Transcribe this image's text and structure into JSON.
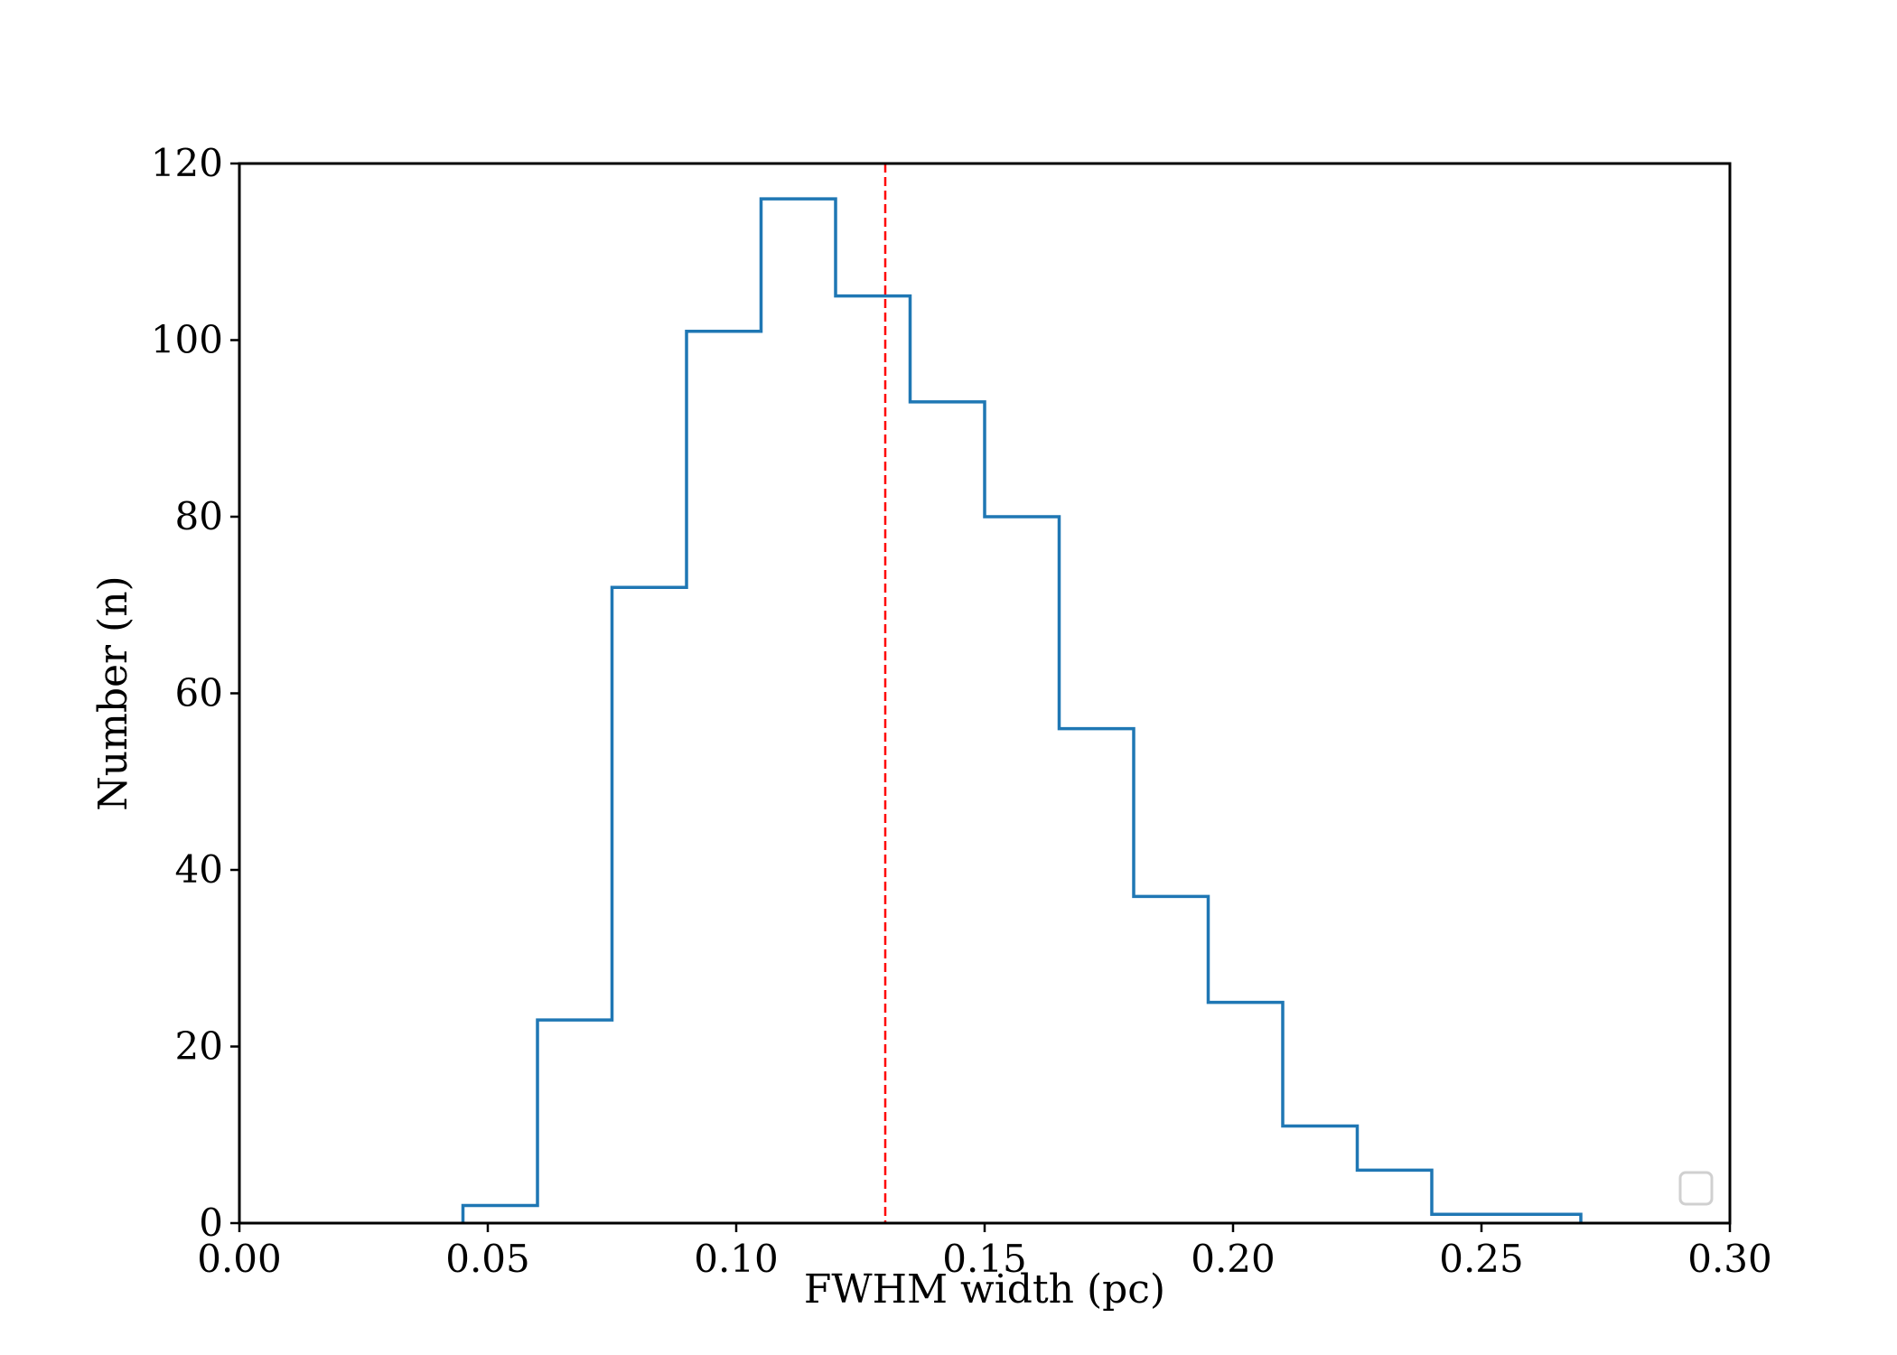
{
  "chart_data": {
    "type": "histogram",
    "xlabel": "FWHM width (pc)",
    "ylabel": "Number (n)",
    "xlim": [
      0.0,
      0.3
    ],
    "ylim": [
      0,
      120
    ],
    "xticks": [
      0.0,
      0.05,
      0.1,
      0.15,
      0.2,
      0.25,
      0.3
    ],
    "xtick_labels": [
      "0.00",
      "0.05",
      "0.10",
      "0.15",
      "0.20",
      "0.25",
      "0.30"
    ],
    "yticks": [
      0,
      20,
      40,
      60,
      80,
      100,
      120
    ],
    "ytick_labels": [
      "0",
      "20",
      "40",
      "60",
      "80",
      "100",
      "120"
    ],
    "bin_edges": [
      0.045,
      0.06,
      0.075,
      0.09,
      0.105,
      0.12,
      0.135,
      0.15,
      0.165,
      0.18,
      0.195,
      0.21,
      0.225,
      0.24,
      0.255,
      0.27
    ],
    "counts": [
      2,
      23,
      72,
      101,
      116,
      105,
      93,
      80,
      56,
      37,
      25,
      11,
      6,
      1,
      1
    ],
    "histtype": "step",
    "step_color": "#1f77b4",
    "reference_line": {
      "x": 0.13,
      "style": "dashed",
      "color": "#ff0000"
    },
    "legend": {
      "placement": "lower-right",
      "entries": []
    },
    "grid": false
  }
}
